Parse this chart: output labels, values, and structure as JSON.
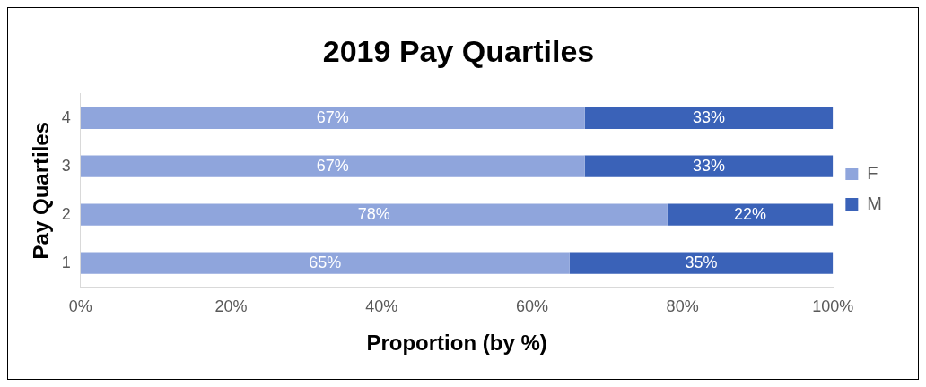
{
  "chart_data": {
    "type": "bar",
    "orientation": "horizontal",
    "stacked": true,
    "title": "2019 Pay Quartiles",
    "xlabel": "Proportion (by %)",
    "ylabel": "Pay Quartiles",
    "categories": [
      "4",
      "3",
      "2",
      "1"
    ],
    "series": [
      {
        "name": "F",
        "color": "#8fa5dc",
        "values": [
          67,
          67,
          78,
          65
        ],
        "value_labels": [
          "67%",
          "67%",
          "78%",
          "65%"
        ]
      },
      {
        "name": "M",
        "color": "#3a62b8",
        "values": [
          33,
          33,
          22,
          35
        ],
        "value_labels": [
          "33%",
          "33%",
          "22%",
          "35%"
        ]
      }
    ],
    "xlim": [
      0,
      100
    ],
    "xticks": [
      {
        "value": 0,
        "label": "0%"
      },
      {
        "value": 20,
        "label": "20%"
      },
      {
        "value": 40,
        "label": "40%"
      },
      {
        "value": 60,
        "label": "60%"
      },
      {
        "value": 80,
        "label": "80%"
      },
      {
        "value": 100,
        "label": "100%"
      }
    ],
    "grid": false,
    "legend": "right"
  }
}
